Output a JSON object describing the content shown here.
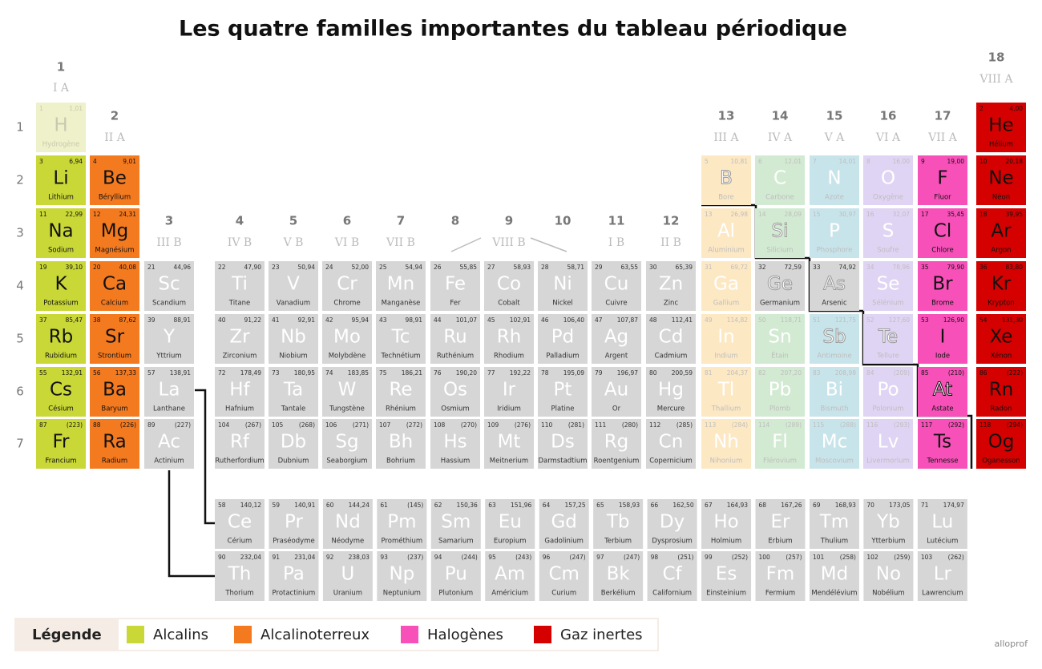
{
  "title": "Les quatre familles importantes du tableau périodique",
  "brand": "alloprof",
  "periods": [
    1,
    2,
    3,
    4,
    5,
    6,
    7
  ],
  "groups": [
    1,
    2,
    3,
    4,
    5,
    6,
    7,
    8,
    9,
    10,
    11,
    12,
    13,
    14,
    15,
    16,
    17,
    18
  ],
  "group_labels": [
    "I A",
    "II A",
    "III B",
    "IV B",
    "V B",
    "VI B",
    "VII B",
    null,
    "VIII B",
    null,
    "I B",
    "II B",
    "III A",
    "IV A",
    "V A",
    "VI A",
    "VII A",
    "VIII A"
  ],
  "legend": {
    "title": "Légende",
    "items": [
      {
        "name": "Alcalins",
        "color": "#c9d737"
      },
      {
        "name": "Alcalinoterreux",
        "color": "#f47a20"
      },
      {
        "name": "Halogènes",
        "color": "#f751b9"
      },
      {
        "name": "Gaz inertes",
        "color": "#d50000"
      }
    ]
  },
  "elements": [
    {
      "number": 1,
      "symbol": "H",
      "name": "Hydrogène",
      "mass": "1,01"
    },
    {
      "number": 2,
      "symbol": "He",
      "name": "Hélium",
      "mass": "4,00"
    },
    {
      "number": 3,
      "symbol": "Li",
      "name": "Lithium",
      "mass": "6,94"
    },
    {
      "number": 4,
      "symbol": "Be",
      "name": "Béryllium",
      "mass": "9,01"
    },
    {
      "number": 5,
      "symbol": "B",
      "name": "Bore",
      "mass": "10,81"
    },
    {
      "number": 6,
      "symbol": "C",
      "name": "Carbone",
      "mass": "12,01"
    },
    {
      "number": 7,
      "symbol": "N",
      "name": "Azote",
      "mass": "14,01"
    },
    {
      "number": 8,
      "symbol": "O",
      "name": "Oxygène",
      "mass": "16,00"
    },
    {
      "number": 9,
      "symbol": "F",
      "name": "Fluor",
      "mass": "19,00"
    },
    {
      "number": 10,
      "symbol": "Ne",
      "name": "Néon",
      "mass": "20,18"
    },
    {
      "number": 11,
      "symbol": "Na",
      "name": "Sodium",
      "mass": "22,99"
    },
    {
      "number": 12,
      "symbol": "Mg",
      "name": "Magnésium",
      "mass": "24,31"
    },
    {
      "number": 13,
      "symbol": "Al",
      "name": "Aluminium",
      "mass": "26,98"
    },
    {
      "number": 14,
      "symbol": "Si",
      "name": "Silicium",
      "mass": "28,09"
    },
    {
      "number": 15,
      "symbol": "P",
      "name": "Phosphore",
      "mass": "30,97"
    },
    {
      "number": 16,
      "symbol": "S",
      "name": "Soufre",
      "mass": "32,07"
    },
    {
      "number": 17,
      "symbol": "Cl",
      "name": "Chlore",
      "mass": "35,45"
    },
    {
      "number": 18,
      "symbol": "Ar",
      "name": "Argon",
      "mass": "39,95"
    },
    {
      "number": 19,
      "symbol": "K",
      "name": "Potassium",
      "mass": "39,10"
    },
    {
      "number": 20,
      "symbol": "Ca",
      "name": "Calcium",
      "mass": "40,08"
    },
    {
      "number": 21,
      "symbol": "Sc",
      "name": "Scandium",
      "mass": "44,96"
    },
    {
      "number": 22,
      "symbol": "Ti",
      "name": "Titane",
      "mass": "47,90"
    },
    {
      "number": 23,
      "symbol": "V",
      "name": "Vanadium",
      "mass": "50,94"
    },
    {
      "number": 24,
      "symbol": "Cr",
      "name": "Chrome",
      "mass": "52,00"
    },
    {
      "number": 25,
      "symbol": "Mn",
      "name": "Manganèse",
      "mass": "54,94"
    },
    {
      "number": 26,
      "symbol": "Fe",
      "name": "Fer",
      "mass": "55,85"
    },
    {
      "number": 27,
      "symbol": "Co",
      "name": "Cobalt",
      "mass": "58,93"
    },
    {
      "number": 28,
      "symbol": "Ni",
      "name": "Nickel",
      "mass": "58,71"
    },
    {
      "number": 29,
      "symbol": "Cu",
      "name": "Cuivre",
      "mass": "63,55"
    },
    {
      "number": 30,
      "symbol": "Zn",
      "name": "Zinc",
      "mass": "65,39"
    },
    {
      "number": 31,
      "symbol": "Ga",
      "name": "Gallium",
      "mass": "69,72"
    },
    {
      "number": 32,
      "symbol": "Ge",
      "name": "Germanium",
      "mass": "72,59"
    },
    {
      "number": 33,
      "symbol": "As",
      "name": "Arsenic",
      "mass": "74,92"
    },
    {
      "number": 34,
      "symbol": "Se",
      "name": "Sélénium",
      "mass": "78,96"
    },
    {
      "number": 35,
      "symbol": "Br",
      "name": "Brome",
      "mass": "79,90"
    },
    {
      "number": 36,
      "symbol": "Kr",
      "name": "Krypton",
      "mass": "83,80"
    },
    {
      "number": 37,
      "symbol": "Rb",
      "name": "Rubidium",
      "mass": "85,47"
    },
    {
      "number": 38,
      "symbol": "Sr",
      "name": "Strontium",
      "mass": "87,62"
    },
    {
      "number": 39,
      "symbol": "Y",
      "name": "Yttrium",
      "mass": "88,91"
    },
    {
      "number": 40,
      "symbol": "Zr",
      "name": "Zirconium",
      "mass": "91,22"
    },
    {
      "number": 41,
      "symbol": "Nb",
      "name": "Niobium",
      "mass": "92,91"
    },
    {
      "number": 42,
      "symbol": "Mo",
      "name": "Molybdène",
      "mass": "95,94"
    },
    {
      "number": 43,
      "symbol": "Tc",
      "name": "Technétium",
      "mass": "98,91"
    },
    {
      "number": 44,
      "symbol": "Ru",
      "name": "Ruthénium",
      "mass": "101,07"
    },
    {
      "number": 45,
      "symbol": "Rh",
      "name": "Rhodium",
      "mass": "102,91"
    },
    {
      "number": 46,
      "symbol": "Pd",
      "name": "Palladium",
      "mass": "106,40"
    },
    {
      "number": 47,
      "symbol": "Ag",
      "name": "Argent",
      "mass": "107,87"
    },
    {
      "number": 48,
      "symbol": "Cd",
      "name": "Cadmium",
      "mass": "112,41"
    },
    {
      "number": 49,
      "symbol": "In",
      "name": "Indium",
      "mass": "114,82"
    },
    {
      "number": 50,
      "symbol": "Sn",
      "name": "Étain",
      "mass": "118,71"
    },
    {
      "number": 51,
      "symbol": "Sb",
      "name": "Antimoine",
      "mass": "121,75"
    },
    {
      "number": 52,
      "symbol": "Te",
      "name": "Tellure",
      "mass": "127,60"
    },
    {
      "number": 53,
      "symbol": "I",
      "name": "Iode",
      "mass": "126,90"
    },
    {
      "number": 54,
      "symbol": "Xe",
      "name": "Xénon",
      "mass": "131,30"
    },
    {
      "number": 55,
      "symbol": "Cs",
      "name": "Césium",
      "mass": "132,91"
    },
    {
      "number": 56,
      "symbol": "Ba",
      "name": "Baryum",
      "mass": "137,33"
    },
    {
      "number": 57,
      "symbol": "La",
      "name": "Lanthane",
      "mass": "138,91"
    },
    {
      "number": 58,
      "symbol": "Ce",
      "name": "Cérium",
      "mass": "140,12"
    },
    {
      "number": 59,
      "symbol": "Pr",
      "name": "Praséodyme",
      "mass": "140,91"
    },
    {
      "number": 60,
      "symbol": "Nd",
      "name": "Néodyme",
      "mass": "144,24"
    },
    {
      "number": 61,
      "symbol": "Pm",
      "name": "Prométhium",
      "mass": "(145)"
    },
    {
      "number": 62,
      "symbol": "Sm",
      "name": "Samarium",
      "mass": "150,36"
    },
    {
      "number": 63,
      "symbol": "Eu",
      "name": "Europium",
      "mass": "151,96"
    },
    {
      "number": 64,
      "symbol": "Gd",
      "name": "Gadolinium",
      "mass": "157,25"
    },
    {
      "number": 65,
      "symbol": "Tb",
      "name": "Terbium",
      "mass": "158,93"
    },
    {
      "number": 66,
      "symbol": "Dy",
      "name": "Dysprosium",
      "mass": "162,50"
    },
    {
      "number": 67,
      "symbol": "Ho",
      "name": "Holmium",
      "mass": "164,93"
    },
    {
      "number": 68,
      "symbol": "Er",
      "name": "Erbium",
      "mass": "167,26"
    },
    {
      "number": 69,
      "symbol": "Tm",
      "name": "Thulium",
      "mass": "168,93"
    },
    {
      "number": 70,
      "symbol": "Yb",
      "name": "Ytterbium",
      "mass": "173,05"
    },
    {
      "number": 71,
      "symbol": "Lu",
      "name": "Lutécium",
      "mass": "174,97"
    },
    {
      "number": 72,
      "symbol": "Hf",
      "name": "Hafnium",
      "mass": "178,49"
    },
    {
      "number": 73,
      "symbol": "Ta",
      "name": "Tantale",
      "mass": "180,95"
    },
    {
      "number": 74,
      "symbol": "W",
      "name": "Tungstène",
      "mass": "183,85"
    },
    {
      "number": 75,
      "symbol": "Re",
      "name": "Rhénium",
      "mass": "186,21"
    },
    {
      "number": 76,
      "symbol": "Os",
      "name": "Osmium",
      "mass": "190,20"
    },
    {
      "number": 77,
      "symbol": "Ir",
      "name": "Iridium",
      "mass": "192,22"
    },
    {
      "number": 78,
      "symbol": "Pt",
      "name": "Platine",
      "mass": "195,09"
    },
    {
      "number": 79,
      "symbol": "Au",
      "name": "Or",
      "mass": "196,97"
    },
    {
      "number": 80,
      "symbol": "Hg",
      "name": "Mercure",
      "mass": "200,59"
    },
    {
      "number": 81,
      "symbol": "Tl",
      "name": "Thallium",
      "mass": "204,37"
    },
    {
      "number": 82,
      "symbol": "Pb",
      "name": "Plomb",
      "mass": "207,20"
    },
    {
      "number": 83,
      "symbol": "Bi",
      "name": "Bismuth",
      "mass": "208,98"
    },
    {
      "number": 84,
      "symbol": "Po",
      "name": "Polonium",
      "mass": "(209)"
    },
    {
      "number": 85,
      "symbol": "At",
      "name": "Astate",
      "mass": "(210)"
    },
    {
      "number": 86,
      "symbol": "Rn",
      "name": "Radon",
      "mass": "(222)"
    },
    {
      "number": 87,
      "symbol": "Fr",
      "name": "Francium",
      "mass": "(223)"
    },
    {
      "number": 88,
      "symbol": "Ra",
      "name": "Radium",
      "mass": "(226)"
    },
    {
      "number": 89,
      "symbol": "Ac",
      "name": "Actinium",
      "mass": "(227)"
    },
    {
      "number": 90,
      "symbol": "Th",
      "name": "Thorium",
      "mass": "232,04"
    },
    {
      "number": 91,
      "symbol": "Pa",
      "name": "Protactinium",
      "mass": "231,04"
    },
    {
      "number": 92,
      "symbol": "U",
      "name": "Uranium",
      "mass": "238,03"
    },
    {
      "number": 93,
      "symbol": "Np",
      "name": "Neptunium",
      "mass": "(237)"
    },
    {
      "number": 94,
      "symbol": "Pu",
      "name": "Plutonium",
      "mass": "(244)"
    },
    {
      "number": 95,
      "symbol": "Am",
      "name": "Américium",
      "mass": "(243)"
    },
    {
      "number": 96,
      "symbol": "Cm",
      "name": "Curium",
      "mass": "(247)"
    },
    {
      "number": 97,
      "symbol": "Bk",
      "name": "Berkélium",
      "mass": "(247)"
    },
    {
      "number": 98,
      "symbol": "Cf",
      "name": "Californium",
      "mass": "(251)"
    },
    {
      "number": 99,
      "symbol": "Es",
      "name": "Einsteinium",
      "mass": "(252)"
    },
    {
      "number": 100,
      "symbol": "Fm",
      "name": "Fermium",
      "mass": "(257)"
    },
    {
      "number": 101,
      "symbol": "Md",
      "name": "Mendélévium",
      "mass": "(258)"
    },
    {
      "number": 102,
      "symbol": "No",
      "name": "Nobélium",
      "mass": "(259)"
    },
    {
      "number": 103,
      "symbol": "Lr",
      "name": "Lawrencium",
      "mass": "(262)"
    },
    {
      "number": 104,
      "symbol": "Rf",
      "name": "Rutherfordium",
      "mass": "(267)"
    },
    {
      "number": 105,
      "symbol": "Db",
      "name": "Dubnium",
      "mass": "(268)"
    },
    {
      "number": 106,
      "symbol": "Sg",
      "name": "Seaborgium",
      "mass": "(271)"
    },
    {
      "number": 107,
      "symbol": "Bh",
      "name": "Bohrium",
      "mass": "(272)"
    },
    {
      "number": 108,
      "symbol": "Hs",
      "name": "Hassium",
      "mass": "(270)"
    },
    {
      "number": 109,
      "symbol": "Mt",
      "name": "Meitnerium",
      "mass": "(276)"
    },
    {
      "number": 110,
      "symbol": "Ds",
      "name": "Darmstadtium",
      "mass": "(281)"
    },
    {
      "number": 111,
      "symbol": "Rg",
      "name": "Roentgenium",
      "mass": "(280)"
    },
    {
      "number": 112,
      "symbol": "Cn",
      "name": "Copernicium",
      "mass": "(285)"
    },
    {
      "number": 113,
      "symbol": "Nh",
      "name": "Nihonium",
      "mass": "(284)"
    },
    {
      "number": 114,
      "symbol": "Fl",
      "name": "Flérovium",
      "mass": "(289)"
    },
    {
      "number": 115,
      "symbol": "Mc",
      "name": "Moscovium",
      "mass": "(288)"
    },
    {
      "number": 116,
      "symbol": "Lv",
      "name": "Livermorium",
      "mass": "(293)"
    },
    {
      "number": 117,
      "symbol": "Ts",
      "name": "Tennesse",
      "mass": "(292)"
    },
    {
      "number": 118,
      "symbol": "Og",
      "name": "Oganesson",
      "mass": "(294)"
    }
  ]
}
